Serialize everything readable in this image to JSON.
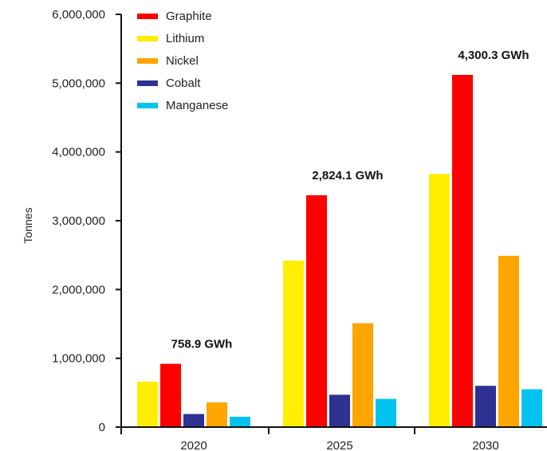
{
  "chart_data": {
    "type": "bar",
    "title": "",
    "xlabel": "",
    "ylabel": "Tonnes",
    "ylim": [
      0,
      6000000
    ],
    "yticks": [
      0,
      1000000,
      2000000,
      3000000,
      4000000,
      5000000,
      6000000
    ],
    "ytick_labels": [
      "0",
      "1,000,000",
      "2,000,000",
      "3,000,000",
      "4,000,000",
      "5,000,000",
      "6,000,000"
    ],
    "categories": [
      "2020",
      "2025",
      "2030"
    ],
    "series": [
      {
        "name": "Lithium",
        "color": "#FFEE00",
        "values": [
          660000,
          2420000,
          3680000
        ]
      },
      {
        "name": "Graphite",
        "color": "#FF0000",
        "values": [
          920000,
          3370000,
          5120000
        ]
      },
      {
        "name": "Cobalt",
        "color": "#2E3192",
        "values": [
          190000,
          470000,
          600000
        ]
      },
      {
        "name": "Nickel",
        "color": "#FFA500",
        "values": [
          360000,
          1510000,
          2490000
        ]
      },
      {
        "name": "Manganese",
        "color": "#00C3F0",
        "values": [
          150000,
          410000,
          550000
        ]
      }
    ],
    "legend": {
      "position": "top-left",
      "entries": [
        {
          "name": "Graphite",
          "color": "#FF0000"
        },
        {
          "name": "Lithium",
          "color": "#FFEE00"
        },
        {
          "name": "Nickel",
          "color": "#FFA500"
        },
        {
          "name": "Cobalt",
          "color": "#2E3192"
        },
        {
          "name": "Manganese",
          "color": "#00C3F0"
        }
      ]
    },
    "annotations": [
      {
        "category": "2020",
        "text": "758.9 GWh"
      },
      {
        "category": "2025",
        "text": "2,824.1 GWh"
      },
      {
        "category": "2030",
        "text": "4,300.3 GWh"
      }
    ],
    "grid": false
  }
}
